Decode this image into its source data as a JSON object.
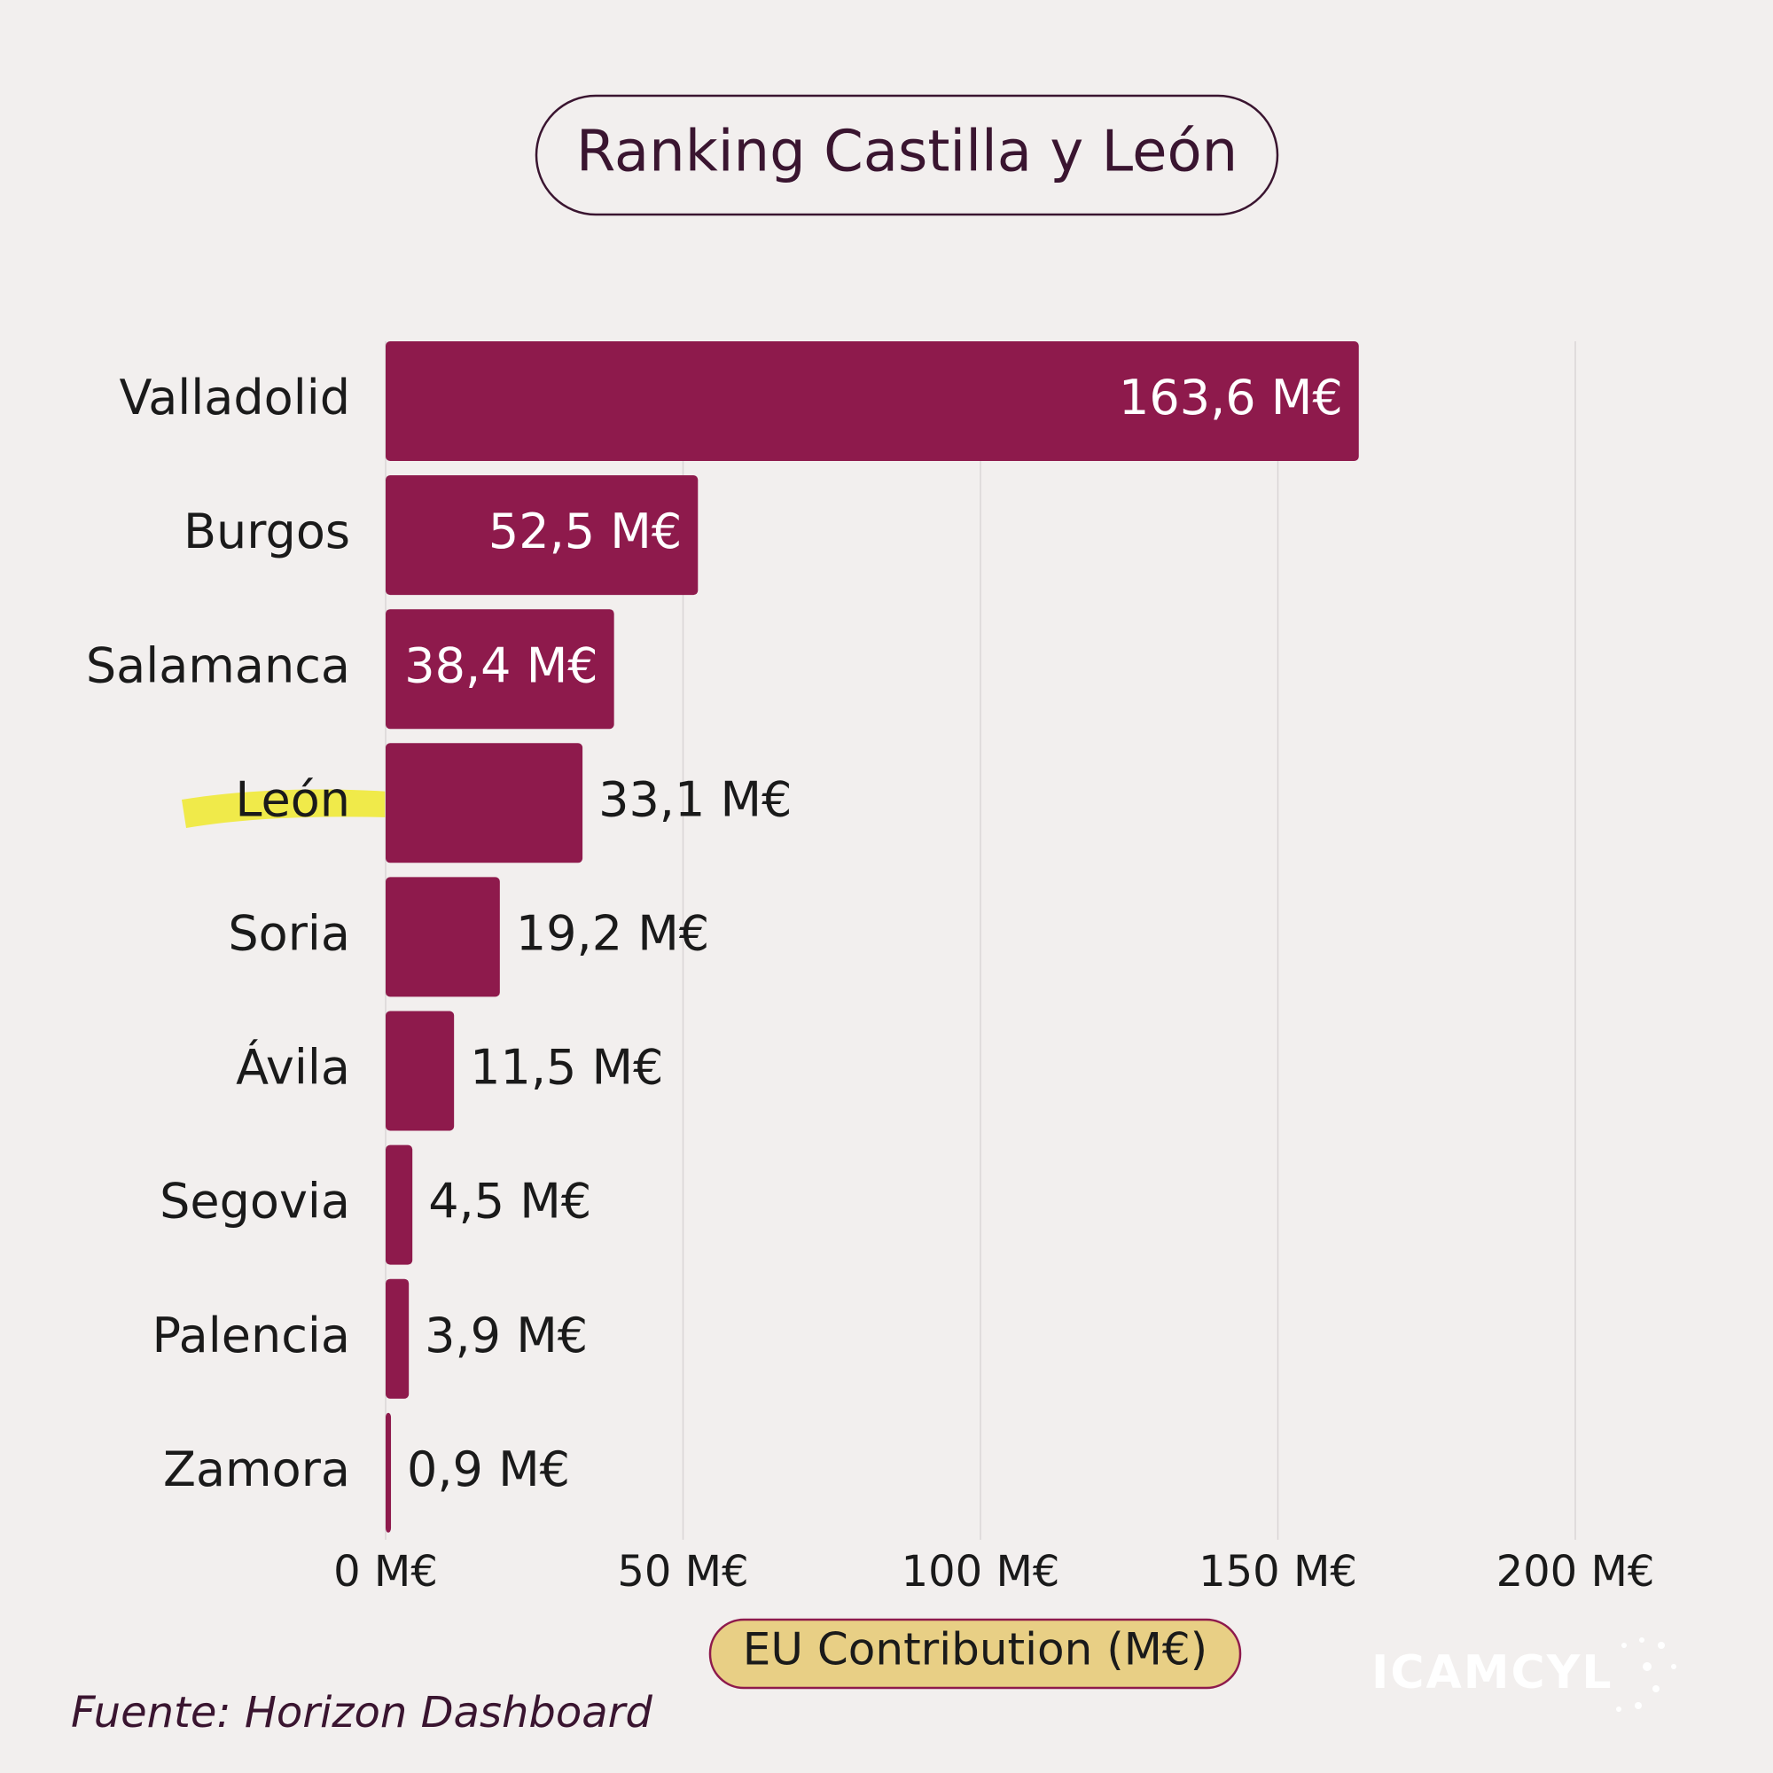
{
  "chart_data": {
    "type": "hbar",
    "title": "Ranking Castilla y León",
    "categories": [
      "Valladolid",
      "Burgos",
      "Salamanca",
      "León",
      "Soria",
      "Ávila",
      "Segovia",
      "Palencia",
      "Zamora"
    ],
    "values": [
      163.6,
      52.5,
      38.4,
      33.1,
      19.2,
      11.5,
      4.5,
      3.9,
      0.9
    ],
    "value_labels": [
      "163,6 M€",
      "52,5 M€",
      "38,4 M€",
      "33,1 M€",
      "19,2 M€",
      "11,5 M€",
      "4,5 M€",
      "3,9 M€",
      "0,9 M€"
    ],
    "color": "#8e1a4c",
    "xlim": [
      0,
      200
    ],
    "xticks": [
      {
        "value": 0,
        "label": "0 M€"
      },
      {
        "value": 50,
        "label": "50 M€"
      },
      {
        "value": 100,
        "label": "100 M€"
      },
      {
        "value": 150,
        "label": "150 M€"
      },
      {
        "value": 200,
        "label": "200 M€"
      }
    ],
    "x_label": "EU Contribution (M€)",
    "grid": true,
    "source": "Fuente: Horizon Dashboard",
    "logo": "ICAMCYL"
  }
}
